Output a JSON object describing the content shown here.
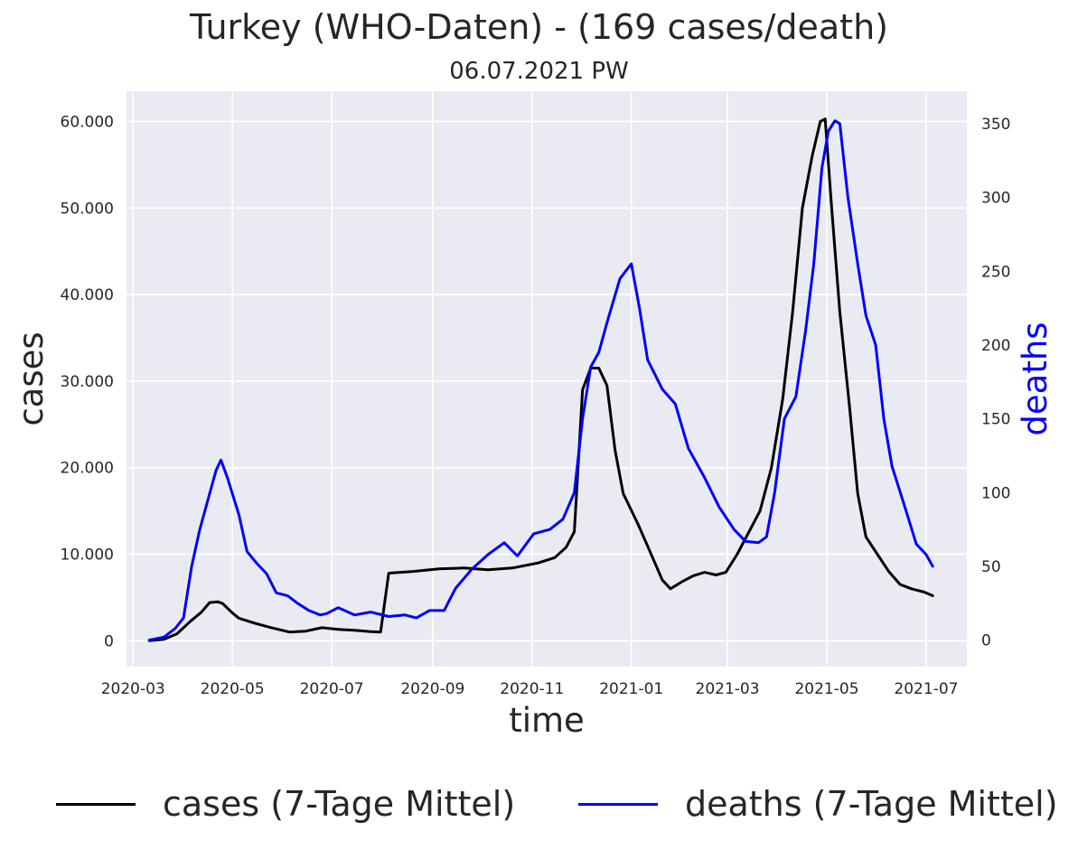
{
  "chart_data": {
    "type": "line",
    "title": "Turkey (WHO-Daten) - (169 cases/death)",
    "subtitle": "06.07.2021 PW",
    "xlabel": "time",
    "ylabel": "cases",
    "y2label": "deaths",
    "x_ticks": [
      "2020-03",
      "2020-05",
      "2020-07",
      "2020-09",
      "2020-11",
      "2021-01",
      "2021-03",
      "2021-05",
      "2021-07"
    ],
    "y_ticks": [
      "0",
      "10.000",
      "20.000",
      "30.000",
      "40.000",
      "50.000",
      "60.000"
    ],
    "y2_ticks": [
      "0",
      "50",
      "100",
      "150",
      "200",
      "250",
      "300",
      "350"
    ],
    "ylim": [
      -3000,
      63500
    ],
    "y2lim": [
      -18,
      372
    ],
    "xlim": [
      "2020-02-26",
      "2021-07-26"
    ],
    "grid": true,
    "legend_position": "bottom",
    "colors": {
      "cases": "#000000",
      "deaths": "#0000ff",
      "plot_bg": "#eaeaf2",
      "grid": "#ffffff"
    },
    "series": [
      {
        "name": "cases (7-Tage Mittel)",
        "axis": "left",
        "color": "#000000",
        "points": [
          [
            "2020-03-11",
            0
          ],
          [
            "2020-03-20",
            150
          ],
          [
            "2020-03-28",
            800
          ],
          [
            "2020-04-05",
            2200
          ],
          [
            "2020-04-12",
            3300
          ],
          [
            "2020-04-17",
            4400
          ],
          [
            "2020-04-22",
            4500
          ],
          [
            "2020-04-25",
            4300
          ],
          [
            "2020-05-01",
            3200
          ],
          [
            "2020-05-05",
            2600
          ],
          [
            "2020-05-15",
            2000
          ],
          [
            "2020-05-25",
            1500
          ],
          [
            "2020-06-05",
            1000
          ],
          [
            "2020-06-15",
            1100
          ],
          [
            "2020-06-25",
            1500
          ],
          [
            "2020-07-05",
            1300
          ],
          [
            "2020-07-15",
            1200
          ],
          [
            "2020-07-25",
            1050
          ],
          [
            "2020-07-31",
            1000
          ],
          [
            "2020-08-05",
            7800
          ],
          [
            "2020-08-20",
            8000
          ],
          [
            "2020-09-05",
            8300
          ],
          [
            "2020-09-20",
            8400
          ],
          [
            "2020-10-05",
            8200
          ],
          [
            "2020-10-20",
            8400
          ],
          [
            "2020-11-05",
            9000
          ],
          [
            "2020-11-15",
            9600
          ],
          [
            "2020-11-22",
            10800
          ],
          [
            "2020-11-27",
            12600
          ],
          [
            "2020-12-02",
            29000
          ],
          [
            "2020-12-07",
            31500
          ],
          [
            "2020-12-12",
            31500
          ],
          [
            "2020-12-17",
            29500
          ],
          [
            "2020-12-22",
            22000
          ],
          [
            "2020-12-27",
            17000
          ],
          [
            "2021-01-05",
            13500
          ],
          [
            "2021-01-12",
            10500
          ],
          [
            "2021-01-20",
            7000
          ],
          [
            "2021-01-25",
            6000
          ],
          [
            "2021-02-01",
            6800
          ],
          [
            "2021-02-08",
            7500
          ],
          [
            "2021-02-15",
            7900
          ],
          [
            "2021-02-22",
            7600
          ],
          [
            "2021-02-28",
            7900
          ],
          [
            "2021-03-07",
            10000
          ],
          [
            "2021-03-14",
            12500
          ],
          [
            "2021-03-21",
            15000
          ],
          [
            "2021-03-28",
            20000
          ],
          [
            "2021-04-04",
            28000
          ],
          [
            "2021-04-10",
            38000
          ],
          [
            "2021-04-16",
            50000
          ],
          [
            "2021-04-22",
            56000
          ],
          [
            "2021-04-27",
            60000
          ],
          [
            "2021-04-30",
            60300
          ],
          [
            "2021-05-04",
            50000
          ],
          [
            "2021-05-09",
            38000
          ],
          [
            "2021-05-15",
            27000
          ],
          [
            "2021-05-20",
            17000
          ],
          [
            "2021-05-25",
            12000
          ],
          [
            "2021-06-01",
            10000
          ],
          [
            "2021-06-08",
            8000
          ],
          [
            "2021-06-15",
            6500
          ],
          [
            "2021-06-22",
            6000
          ],
          [
            "2021-06-30",
            5600
          ],
          [
            "2021-07-05",
            5200
          ]
        ]
      },
      {
        "name": "deaths (7-Tage Mittel)",
        "axis": "right",
        "color": "#0000ff",
        "points": [
          [
            "2020-03-11",
            0
          ],
          [
            "2020-03-20",
            2
          ],
          [
            "2020-03-27",
            8
          ],
          [
            "2020-04-01",
            15
          ],
          [
            "2020-04-06",
            50
          ],
          [
            "2020-04-11",
            75
          ],
          [
            "2020-04-16",
            95
          ],
          [
            "2020-04-21",
            115
          ],
          [
            "2020-04-24",
            122
          ],
          [
            "2020-04-28",
            110
          ],
          [
            "2020-05-05",
            85
          ],
          [
            "2020-05-10",
            60
          ],
          [
            "2020-05-16",
            52
          ],
          [
            "2020-05-22",
            45
          ],
          [
            "2020-05-28",
            32
          ],
          [
            "2020-06-04",
            30
          ],
          [
            "2020-06-10",
            25
          ],
          [
            "2020-06-17",
            20
          ],
          [
            "2020-06-24",
            17
          ],
          [
            "2020-06-28",
            18
          ],
          [
            "2020-07-05",
            22
          ],
          [
            "2020-07-15",
            17
          ],
          [
            "2020-07-25",
            19
          ],
          [
            "2020-08-05",
            16
          ],
          [
            "2020-08-15",
            17
          ],
          [
            "2020-08-22",
            15
          ],
          [
            "2020-08-30",
            20
          ],
          [
            "2020-09-08",
            20
          ],
          [
            "2020-09-15",
            35
          ],
          [
            "2020-09-25",
            48
          ],
          [
            "2020-10-05",
            58
          ],
          [
            "2020-10-15",
            66
          ],
          [
            "2020-10-23",
            57
          ],
          [
            "2020-11-02",
            72
          ],
          [
            "2020-11-12",
            75
          ],
          [
            "2020-11-20",
            82
          ],
          [
            "2020-11-27",
            100
          ],
          [
            "2020-12-02",
            150
          ],
          [
            "2020-12-07",
            185
          ],
          [
            "2020-12-12",
            195
          ],
          [
            "2020-12-17",
            215
          ],
          [
            "2020-12-25",
            245
          ],
          [
            "2021-01-01",
            255
          ],
          [
            "2021-01-06",
            225
          ],
          [
            "2021-01-11",
            190
          ],
          [
            "2021-01-20",
            170
          ],
          [
            "2021-01-28",
            160
          ],
          [
            "2021-02-05",
            130
          ],
          [
            "2021-02-15",
            110
          ],
          [
            "2021-02-24",
            90
          ],
          [
            "2021-03-05",
            75
          ],
          [
            "2021-03-12",
            67
          ],
          [
            "2021-03-20",
            66
          ],
          [
            "2021-03-25",
            70
          ],
          [
            "2021-03-30",
            100
          ],
          [
            "2021-04-05",
            150
          ],
          [
            "2021-04-12",
            165
          ],
          [
            "2021-04-18",
            210
          ],
          [
            "2021-04-23",
            255
          ],
          [
            "2021-04-28",
            320
          ],
          [
            "2021-05-02",
            345
          ],
          [
            "2021-05-06",
            352
          ],
          [
            "2021-05-09",
            350
          ],
          [
            "2021-05-14",
            300
          ],
          [
            "2021-05-20",
            255
          ],
          [
            "2021-05-25",
            220
          ],
          [
            "2021-05-31",
            200
          ],
          [
            "2021-06-05",
            150
          ],
          [
            "2021-06-10",
            118
          ],
          [
            "2021-06-18",
            90
          ],
          [
            "2021-06-25",
            65
          ],
          [
            "2021-07-01",
            58
          ],
          [
            "2021-07-05",
            50
          ]
        ]
      }
    ]
  }
}
